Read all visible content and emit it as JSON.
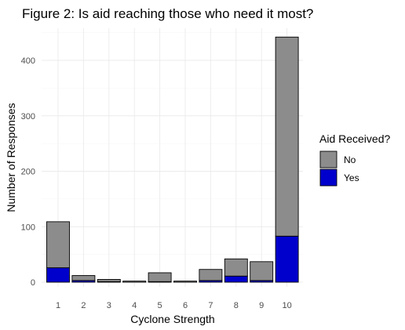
{
  "chart_data": {
    "type": "bar",
    "stacked": true,
    "title": "Figure 2: Is aid reaching those who need it most?",
    "xlabel": "Cyclone Strength",
    "ylabel": "Number of Responses",
    "categories": [
      "1",
      "2",
      "3",
      "4",
      "5",
      "6",
      "7",
      "8",
      "9",
      "10"
    ],
    "series": [
      {
        "name": "Yes",
        "color": "#0000cd",
        "values": [
          26,
          3,
          1,
          0,
          1,
          0,
          3,
          11,
          3,
          83
        ]
      },
      {
        "name": "No",
        "color": "#8c8c8c",
        "values": [
          83,
          9,
          4,
          2,
          16,
          2,
          20,
          31,
          34,
          359
        ]
      }
    ],
    "ylim": [
      0,
      460
    ],
    "yticks": [
      0,
      100,
      200,
      300,
      400
    ],
    "grid": true,
    "legend": {
      "title": "Aid Received?",
      "position": "right",
      "entries": [
        {
          "label": "No",
          "color": "#8c8c8c"
        },
        {
          "label": "Yes",
          "color": "#0000cd"
        }
      ]
    }
  }
}
